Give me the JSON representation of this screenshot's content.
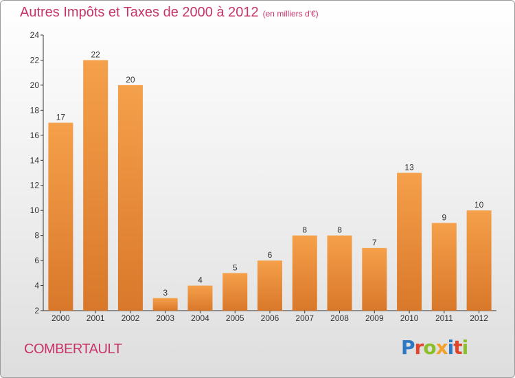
{
  "title": "Autres Impôts et Taxes de 2000 à 2012",
  "unit": "(en milliers d'€)",
  "commune": "COMBERTAULT",
  "logo": {
    "letters": [
      {
        "ch": "P",
        "color": "#2b78c5"
      },
      {
        "ch": "r",
        "color": "#e0452c"
      },
      {
        "ch": "o",
        "color": "#8bbf2a"
      },
      {
        "ch": "x",
        "color": "#f2a12a"
      },
      {
        "ch": "i",
        "color": "#2b78c5"
      },
      {
        "ch": "t",
        "color": "#e0452c"
      },
      {
        "ch": "i",
        "color": "#8bbf2a"
      }
    ]
  },
  "chart_data": {
    "type": "bar",
    "categories": [
      "2000",
      "2001",
      "2002",
      "2003",
      "2004",
      "2005",
      "2006",
      "2007",
      "2008",
      "2009",
      "2010",
      "2011",
      "2012"
    ],
    "values": [
      17,
      22,
      20,
      3,
      4,
      5,
      6,
      8,
      8,
      7,
      13,
      9,
      10
    ],
    "ylim": [
      2,
      24
    ],
    "yticks": [
      2,
      4,
      6,
      8,
      10,
      12,
      14,
      16,
      18,
      20,
      22,
      24
    ],
    "grid": false,
    "bar_color": "#f5a04a",
    "bar_color_dark": "#d9782a"
  }
}
